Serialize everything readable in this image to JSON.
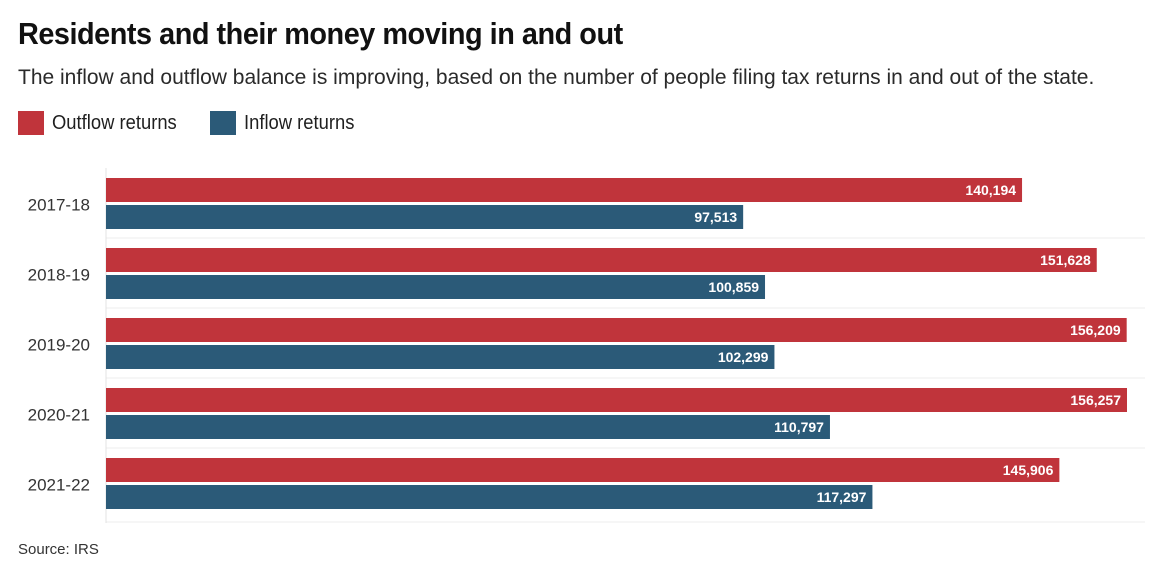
{
  "title": "Residents and their money moving in and out",
  "subtitle": "The inflow and outflow balance is improving, based on the number of people filing tax returns in and out of the state.",
  "source": "Source: IRS",
  "colors": {
    "outflow": "#c0343b",
    "inflow": "#2b5a78"
  },
  "chart_data": {
    "type": "bar",
    "orientation": "horizontal",
    "categories": [
      "2017-18",
      "2018-19",
      "2019-20",
      "2020-21",
      "2021-22"
    ],
    "series": [
      {
        "name": "Outflow returns",
        "values": [
          140194,
          151628,
          156209,
          156257,
          145906
        ],
        "labels": [
          "140,194",
          "151,628",
          "156,209",
          "156,257",
          "145,906"
        ]
      },
      {
        "name": "Inflow returns",
        "values": [
          97513,
          100859,
          102299,
          110797,
          117297
        ],
        "labels": [
          "97,513",
          "100,859",
          "102,299",
          "110,797",
          "117,297"
        ]
      }
    ],
    "legend": "top-left",
    "grid": true
  }
}
